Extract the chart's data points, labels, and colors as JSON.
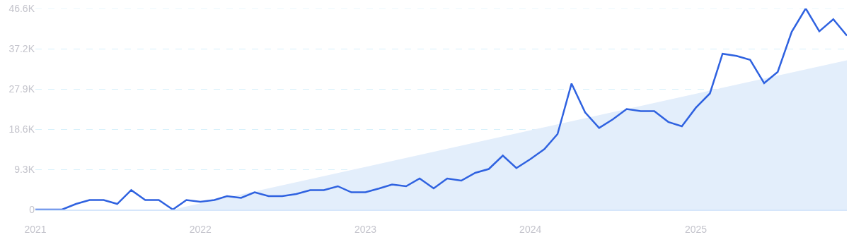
{
  "chart_data": {
    "type": "line",
    "x": [
      "2021-01",
      "2021-02",
      "2021-03",
      "2021-04",
      "2021-05",
      "2021-06",
      "2021-07",
      "2021-08",
      "2021-09",
      "2021-10",
      "2021-11",
      "2021-12",
      "2022-01",
      "2022-02",
      "2022-03",
      "2022-04",
      "2022-05",
      "2022-06",
      "2022-07",
      "2022-08",
      "2022-09",
      "2022-10",
      "2022-11",
      "2022-12",
      "2023-01",
      "2023-02",
      "2023-03",
      "2023-04",
      "2023-05",
      "2023-06",
      "2023-07",
      "2023-08",
      "2023-09",
      "2023-10",
      "2023-11",
      "2023-12",
      "2024-01",
      "2024-02",
      "2024-03",
      "2024-04",
      "2024-05",
      "2024-06",
      "2024-07",
      "2024-08",
      "2024-09",
      "2024-10",
      "2024-11",
      "2024-12",
      "2025-01",
      "2025-02",
      "2025-03",
      "2025-04",
      "2025-05",
      "2025-06",
      "2025-07",
      "2025-08",
      "2025-09",
      "2025-10",
      "2025-11",
      "2025-12"
    ],
    "series": [
      {
        "type": "area",
        "color": "#e3eefb",
        "x": [
          "2021-11",
          "2025-12"
        ],
        "values": [
          0,
          34.6
        ]
      },
      {
        "color": "#2f62e0",
        "values": [
          0,
          0,
          0,
          1.3,
          2.2,
          2.2,
          1.3,
          4.5,
          2.2,
          2.2,
          0,
          2.2,
          1.8,
          2.2,
          3.1,
          2.7,
          4.0,
          3.1,
          3.1,
          3.6,
          4.5,
          4.5,
          5.4,
          4.0,
          4.0,
          4.9,
          5.8,
          5.4,
          7.2,
          4.9,
          7.2,
          6.7,
          8.5,
          9.4,
          12.5,
          9.6,
          11.7,
          14.0,
          17.5,
          29.2,
          22.5,
          18.9,
          20.9,
          23.3,
          22.8,
          22.8,
          20.3,
          19.3,
          23.6,
          26.9,
          36.1,
          35.6,
          34.7,
          29.3,
          31.9,
          41.2,
          46.6,
          41.3,
          44.1,
          40.3
        ]
      }
    ],
    "xlim": [
      "2021-01",
      "2025-12"
    ],
    "xticks": [
      {
        "value": "2021-01",
        "label": "2021"
      },
      {
        "value": "2022-01",
        "label": "2022"
      },
      {
        "value": "2023-01",
        "label": "2023"
      },
      {
        "value": "2024-01",
        "label": "2024"
      },
      {
        "value": "2025-01",
        "label": "2025"
      }
    ],
    "ylim": [
      0,
      46.6
    ],
    "yticks": [
      {
        "value": 0,
        "label": "0"
      },
      {
        "value": 9.3,
        "label": "9.3K"
      },
      {
        "value": 18.6,
        "label": "18.6K"
      },
      {
        "value": 27.9,
        "label": "27.9K"
      },
      {
        "value": 37.2,
        "label": "37.2K"
      },
      {
        "value": 46.6,
        "label": "46.6K"
      }
    ],
    "grid": "y",
    "line_style": "solid",
    "marker": "none"
  }
}
